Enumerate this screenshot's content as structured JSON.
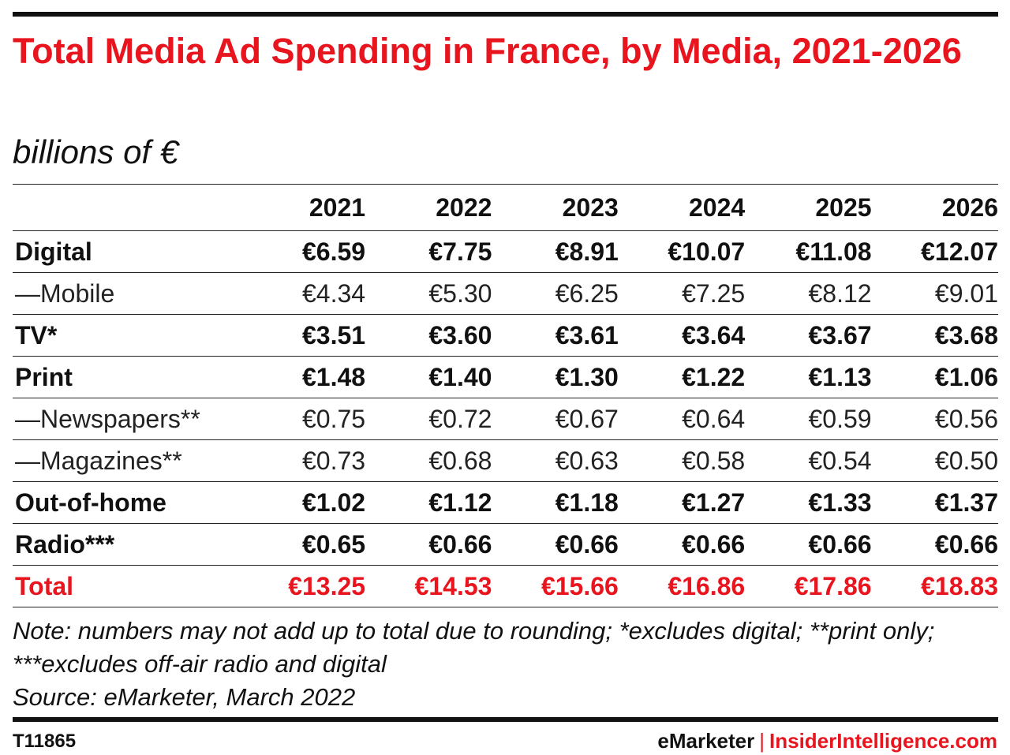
{
  "chart_data": {
    "type": "table",
    "title": "Total Media Ad Spending in France, by Media, 2021-2026",
    "subtitle": "billions of €",
    "columns": [
      "2021",
      "2022",
      "2023",
      "2024",
      "2025",
      "2026"
    ],
    "rows": [
      {
        "label": "Digital",
        "style": "bold",
        "values": [
          "€6.59",
          "€7.75",
          "€8.91",
          "€10.07",
          "€11.08",
          "€12.07"
        ]
      },
      {
        "label": "—Mobile",
        "style": "light",
        "values": [
          "€4.34",
          "€5.30",
          "€6.25",
          "€7.25",
          "€8.12",
          "€9.01"
        ]
      },
      {
        "label": "TV*",
        "style": "bold",
        "values": [
          "€3.51",
          "€3.60",
          "€3.61",
          "€3.64",
          "€3.67",
          "€3.68"
        ]
      },
      {
        "label": "Print",
        "style": "bold",
        "values": [
          "€1.48",
          "€1.40",
          "€1.30",
          "€1.22",
          "€1.13",
          "€1.06"
        ]
      },
      {
        "label": "—Newspapers**",
        "style": "light",
        "values": [
          "€0.75",
          "€0.72",
          "€0.67",
          "€0.64",
          "€0.59",
          "€0.56"
        ]
      },
      {
        "label": "—Magazines**",
        "style": "light",
        "values": [
          "€0.73",
          "€0.68",
          "€0.63",
          "€0.58",
          "€0.54",
          "€0.50"
        ]
      },
      {
        "label": "Out-of-home",
        "style": "bold",
        "values": [
          "€1.02",
          "€1.12",
          "€1.18",
          "€1.27",
          "€1.33",
          "€1.37"
        ]
      },
      {
        "label": "Radio***",
        "style": "bold",
        "values": [
          "€0.65",
          "€0.66",
          "€0.66",
          "€0.66",
          "€0.66",
          "€0.66"
        ]
      },
      {
        "label": "Total",
        "style": "total",
        "values": [
          "€13.25",
          "€14.53",
          "€15.66",
          "€16.86",
          "€17.86",
          "€18.83"
        ]
      }
    ],
    "accent_color": "#e8141e"
  },
  "notes": {
    "note": "Note: numbers may not add up to total due to rounding; *excludes digital; **print only; ***excludes off-air radio and digital",
    "source": "Source: eMarketer, March 2022"
  },
  "footer": {
    "chart_id": "T11865",
    "brand_emarketer": "eMarketer",
    "brand_separator": "|",
    "brand_insider": "InsiderIntelligence.com"
  }
}
